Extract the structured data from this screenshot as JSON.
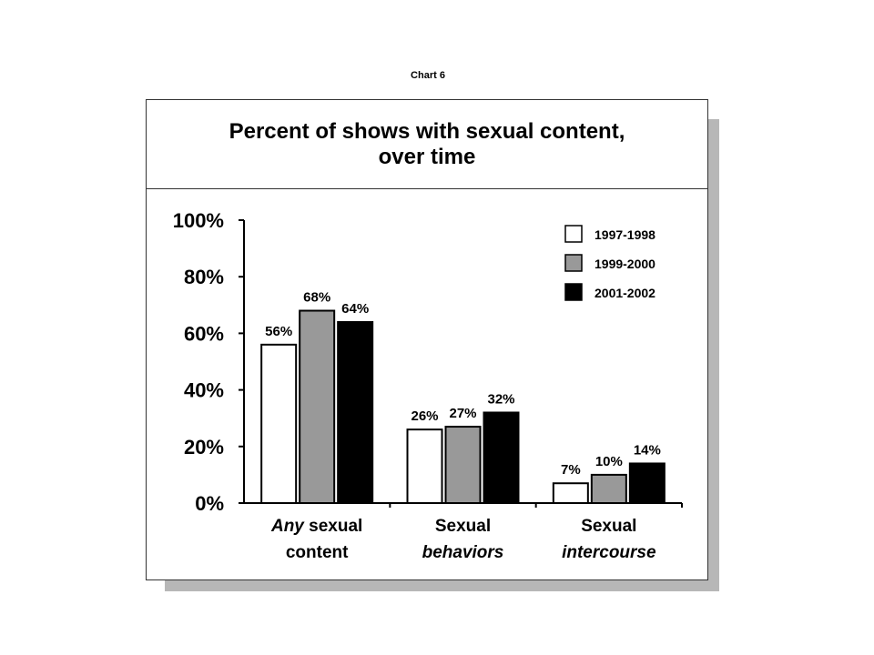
{
  "caption": "Chart 6",
  "chart_data": {
    "type": "bar",
    "title_lines": [
      "Percent of shows with sexual content,",
      "over time"
    ],
    "categories": [
      {
        "line1": [
          {
            "text": "Any",
            "italic": true
          },
          {
            "text": " sexual",
            "italic": false
          }
        ],
        "line2": [
          {
            "text": "content",
            "italic": false
          }
        ]
      },
      {
        "line1": [
          {
            "text": "Sexual",
            "italic": false
          }
        ],
        "line2": [
          {
            "text": "behaviors",
            "italic": true
          }
        ]
      },
      {
        "line1": [
          {
            "text": "Sexual",
            "italic": false
          }
        ],
        "line2": [
          {
            "text": "intercourse",
            "italic": true
          }
        ]
      }
    ],
    "series": [
      {
        "name": "1997-1998",
        "color": "#ffffff",
        "values": [
          56,
          26,
          7
        ],
        "labels": [
          "56%",
          "26%",
          "7%"
        ]
      },
      {
        "name": "1999-2000",
        "color": "#999999",
        "values": [
          68,
          27,
          10
        ],
        "labels": [
          "68%",
          "27%",
          "10%"
        ]
      },
      {
        "name": "2001-2002",
        "color": "#000000",
        "values": [
          64,
          32,
          14
        ],
        "labels": [
          "64%",
          "32%",
          "14%"
        ]
      }
    ],
    "y_ticks": [
      "0%",
      "20%",
      "40%",
      "60%",
      "80%",
      "100%"
    ],
    "ylim": [
      0,
      100
    ],
    "legend_position": "top-right",
    "grid": false
  }
}
